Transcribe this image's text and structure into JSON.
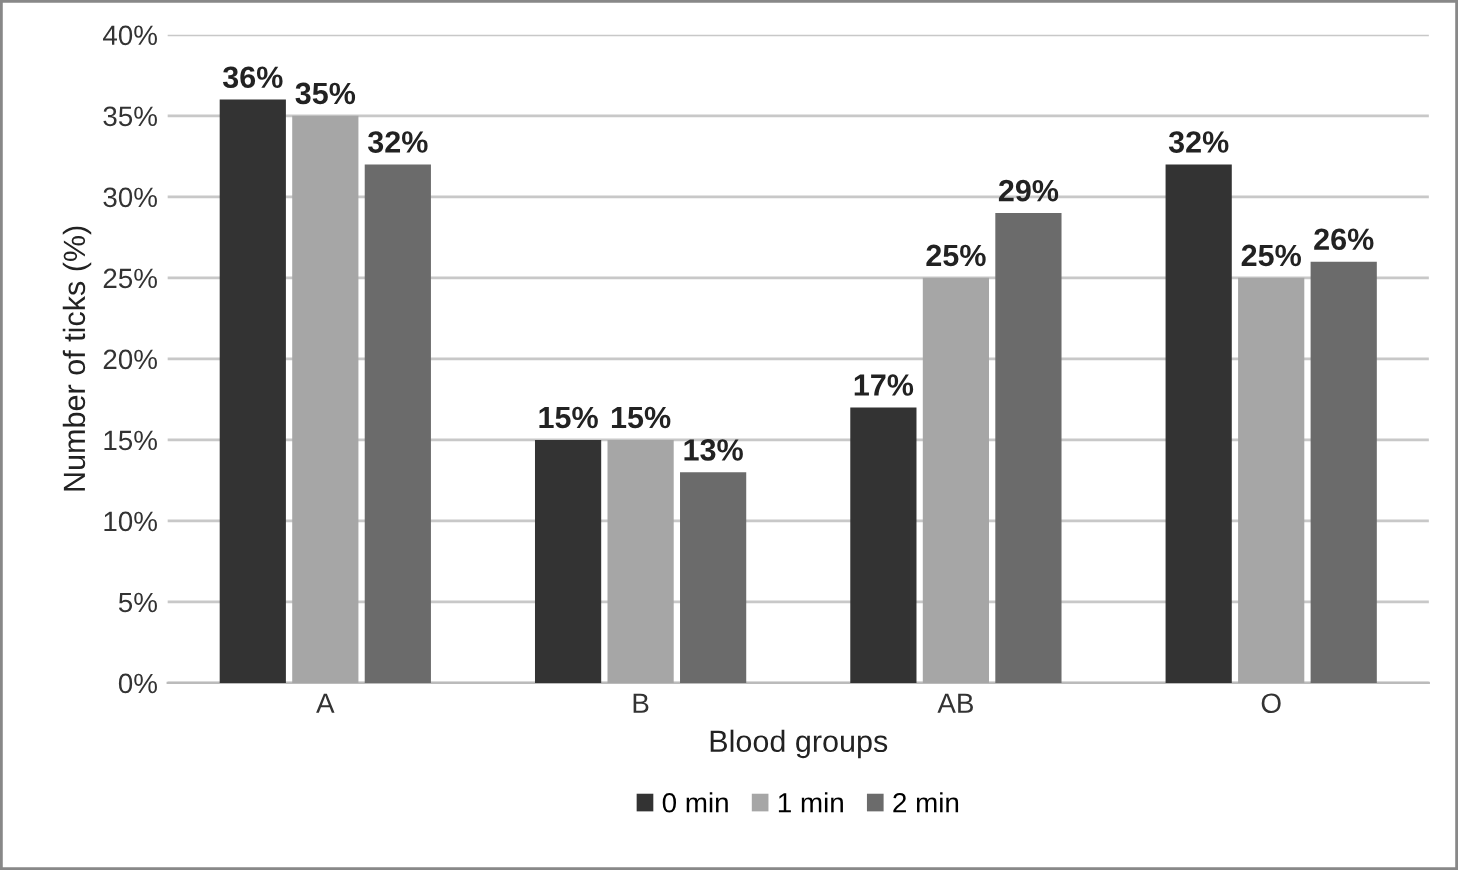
{
  "chart_data": {
    "type": "bar",
    "xlabel": "Blood groups",
    "ylabel": "Number of ticks (%)",
    "categories": [
      "A",
      "B",
      "AB",
      "O"
    ],
    "series": [
      {
        "name": "0 min",
        "color": "#333333",
        "values": [
          36,
          15,
          17,
          32
        ],
        "value_labels": [
          "36%",
          "15%",
          "17%",
          "32%"
        ]
      },
      {
        "name": "1 min",
        "color": "#a6a6a6",
        "values": [
          35,
          15,
          25,
          25
        ],
        "value_labels": [
          "35%",
          "15%",
          "25%",
          "25%"
        ]
      },
      {
        "name": "2 min",
        "color": "#6b6b6b",
        "values": [
          32,
          13,
          29,
          26
        ],
        "value_labels": [
          "32%",
          "13%",
          "29%",
          "26%"
        ]
      }
    ],
    "ylim": [
      0,
      40
    ],
    "yticks": [
      {
        "value": 0,
        "label": "0%"
      },
      {
        "value": 5,
        "label": "5%"
      },
      {
        "value": 10,
        "label": "10%"
      },
      {
        "value": 15,
        "label": "15%"
      },
      {
        "value": 20,
        "label": "20%"
      },
      {
        "value": 25,
        "label": "25%"
      },
      {
        "value": 30,
        "label": "30%"
      },
      {
        "value": 35,
        "label": "35%"
      },
      {
        "value": 40,
        "label": "40%"
      }
    ],
    "grid": "y",
    "legend": "bottom"
  }
}
